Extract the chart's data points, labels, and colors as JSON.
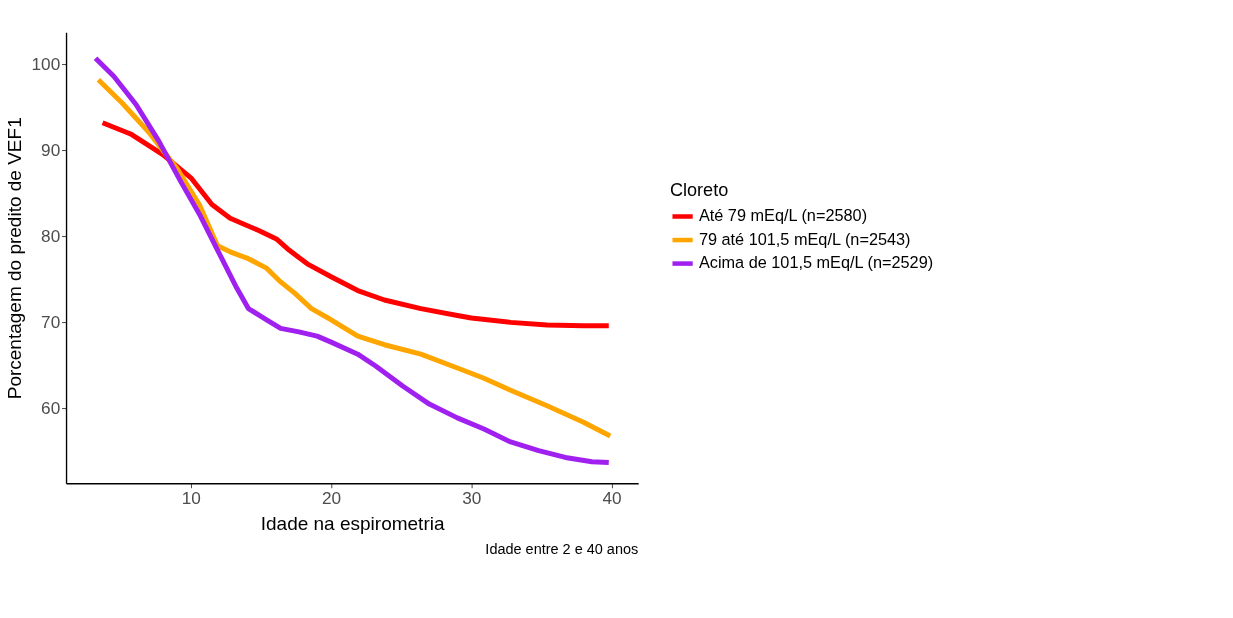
{
  "chart_data": {
    "type": "line",
    "xlabel": "Idade na espirometria",
    "ylabel": "Porcentagem do predito de VEF1",
    "legend_title": "Cloreto",
    "annotations": [
      "Idade entre 2 e 40 anos"
    ],
    "xlim": [
      1.1,
      41.9
    ],
    "ylim": [
      51.3,
      103.7
    ],
    "xticks": [
      10,
      20,
      30,
      40
    ],
    "yticks": [
      60,
      70,
      80,
      90,
      100
    ],
    "grid": false,
    "legend": "right",
    "line_style": "solid",
    "series": [
      {
        "name": "Até 79 mEq/L (n=2580)",
        "color": "#ff0000",
        "x": [
          3.7,
          5.7,
          8.0,
          10,
          11.5,
          12.8,
          14.8,
          16.1,
          17,
          18.3,
          20,
          21.9,
          23.8,
          26.4,
          29,
          30,
          32.8,
          35.4,
          38,
          39.8
        ],
        "values": [
          93.2,
          91.9,
          89.5,
          86.8,
          83.7,
          82.1,
          80.7,
          79.7,
          78.4,
          76.8,
          75.3,
          73.7,
          72.6,
          71.6,
          70.8,
          70.5,
          70.0,
          69.7,
          69.6,
          69.6
        ]
      },
      {
        "name": "79 até 101,5 mEq/L (n=2543)",
        "color": "#ffa500",
        "x": [
          3.4,
          5.1,
          7,
          9,
          10.6,
          11.9,
          12.8,
          14.1,
          15.4,
          16.4,
          17.4,
          18.6,
          20,
          21.9,
          23.8,
          26.4,
          29,
          30.9,
          32.8,
          35.4,
          38,
          39.9
        ],
        "values": [
          98.2,
          95.5,
          92.1,
          87.9,
          83.7,
          78.9,
          78.2,
          77.4,
          76.3,
          74.7,
          73.4,
          71.6,
          70.3,
          68.4,
          67.4,
          66.3,
          64.7,
          63.5,
          62.1,
          60.3,
          58.4,
          56.8
        ]
      },
      {
        "name": "Acima de 101,5 mEq/L (n=2529)",
        "color": "#a020f0",
        "x": [
          3.2,
          4.5,
          6.1,
          7.7,
          9.3,
          10.6,
          11.9,
          13.2,
          14.1,
          15.4,
          16.4,
          17.7,
          19,
          20,
          21.9,
          23.2,
          25.1,
          27,
          29,
          30.9,
          32.8,
          34.8,
          36.7,
          38.6,
          39.8
        ],
        "values": [
          100.7,
          98.6,
          95.3,
          91.1,
          86.3,
          82.6,
          78.4,
          74.2,
          71.6,
          70.3,
          69.3,
          68.9,
          68.4,
          67.7,
          66.3,
          64.9,
          62.6,
          60.5,
          58.9,
          57.6,
          56.1,
          55.1,
          54.3,
          53.8,
          53.7
        ]
      }
    ]
  }
}
